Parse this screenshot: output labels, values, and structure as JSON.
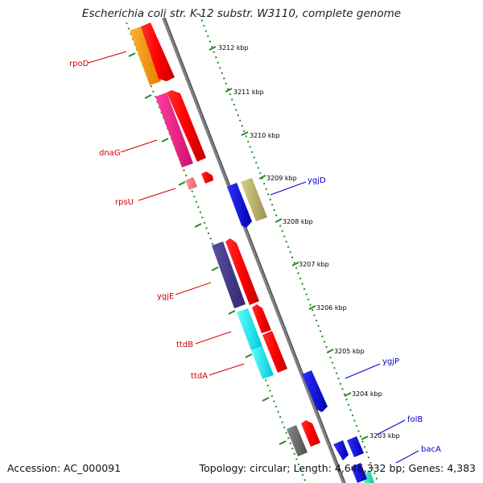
{
  "title": "Escherichia coli str. K-12 substr. W3110, complete genome",
  "ruler_labels": [
    "3212 kbp",
    "3211 kbp",
    "3210 kbp",
    "3209 kbp",
    "3208 kbp",
    "3207 kbp",
    "3206 kbp",
    "3205 kbp",
    "3204 kbp",
    "3203 kbp"
  ],
  "genes": [
    "rpoD",
    "dnaG",
    "rpsU",
    "ygjE",
    "ttdB",
    "ttdA",
    "ygjD",
    "ygjP",
    "folB",
    "bacA"
  ],
  "colors": {
    "red": "#ff0000",
    "gene_red_label": "#cc0000",
    "gene_blue_label": "#0000cc",
    "orange": "#ff9900",
    "magenta": "#ff1493",
    "pink": "#f08080",
    "navy": "#483d8b",
    "cyan": "#00ffff",
    "blue": "#0000ff",
    "khaki": "#bdb76b",
    "grey": "#696969",
    "aqua": "#40e0d0",
    "backbone": "#808080",
    "tick_green": "#228b22"
  },
  "footer": {
    "accession": "Accession: AC_000091",
    "summary": "Topology: circular; Length: 4,646,332 bp; Genes: 4,383"
  }
}
